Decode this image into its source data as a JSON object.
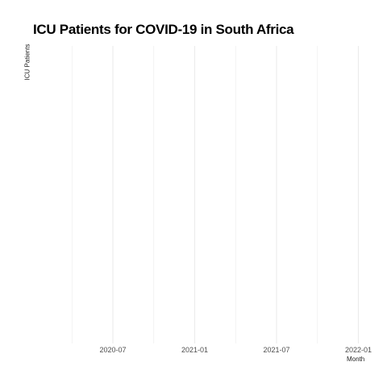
{
  "chart_data": {
    "type": "line",
    "title": "ICU Patients for COVID-19 in South Africa",
    "xlabel": "Month",
    "ylabel": "ICU Patients",
    "x_tick_labels": [
      "2020-07",
      "2021-01",
      "2021-07",
      "2022-01"
    ],
    "x": [],
    "series": [],
    "grid": true,
    "legend": "none",
    "colors": {
      "gridline": "#ebebeb",
      "tick_text": "#4d4d4d",
      "title_text": "#000000"
    }
  }
}
